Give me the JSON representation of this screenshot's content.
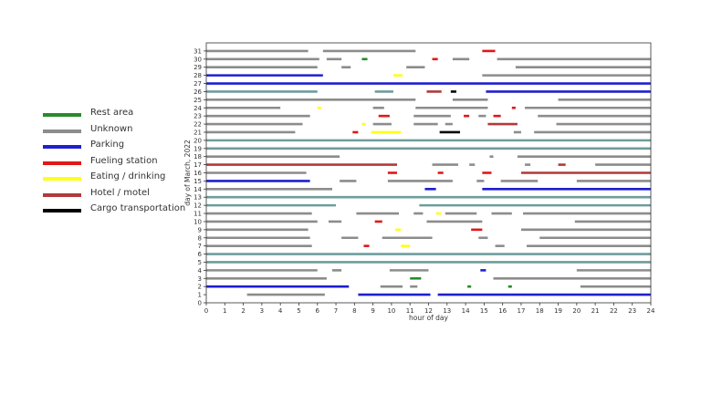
{
  "chart_data": {
    "type": "timeline",
    "xlabel": "hour of day",
    "ylabel": "day of March, 2022",
    "xlim": [
      0,
      24
    ],
    "ylim": [
      0,
      32
    ],
    "xticks": [
      "0",
      "1",
      "2",
      "3",
      "4",
      "5",
      "6",
      "7",
      "8",
      "9",
      "10",
      "11",
      "12",
      "13",
      "14",
      "15",
      "16",
      "17",
      "18",
      "19",
      "20",
      "21",
      "22",
      "23",
      "24"
    ],
    "yticks": [
      "0",
      "1",
      "2",
      "3",
      "4",
      "5",
      "6",
      "7",
      "8",
      "9",
      "10",
      "11",
      "12",
      "13",
      "14",
      "15",
      "16",
      "17",
      "18",
      "19",
      "20",
      "21",
      "22",
      "23",
      "24",
      "25",
      "26",
      "27",
      "28",
      "29",
      "30",
      "31"
    ],
    "legend_position": "left",
    "categories": [
      {
        "name": "Rest area",
        "color": "#2a8a2a"
      },
      {
        "name": "Unknown",
        "color": "#8c8c8c"
      },
      {
        "name": "Parking",
        "color": "#1f1fd0"
      },
      {
        "name": "Fueling station",
        "color": "#e01818"
      },
      {
        "name": "Eating / drinking",
        "color": "#ffff1a"
      },
      {
        "name": "Hotel / motel",
        "color": "#b03a3a"
      },
      {
        "name": "Cargo transportation",
        "color": "#000000"
      }
    ],
    "segments": [
      [
        31,
        0,
        5.5,
        1
      ],
      [
        31,
        6.3,
        11.3,
        1
      ],
      [
        31,
        14.9,
        15.6,
        3
      ],
      [
        30,
        0,
        6.1,
        1
      ],
      [
        30,
        6.5,
        7.3,
        1
      ],
      [
        30,
        8.4,
        8.7,
        0
      ],
      [
        30,
        12.2,
        12.5,
        3
      ],
      [
        30,
        13.3,
        14.2,
        1
      ],
      [
        30,
        15.7,
        24,
        1
      ],
      [
        29,
        0,
        6.0,
        1
      ],
      [
        29,
        7.3,
        7.8,
        1
      ],
      [
        29,
        10.8,
        11.8,
        1
      ],
      [
        29,
        16.7,
        24,
        1
      ],
      [
        28,
        0,
        6.3,
        2
      ],
      [
        28,
        10.1,
        10.6,
        4
      ],
      [
        28,
        14.9,
        24,
        1
      ],
      [
        27,
        0,
        24,
        2
      ],
      [
        26,
        0,
        6.0,
        8
      ],
      [
        26,
        9.1,
        10.1,
        8
      ],
      [
        26,
        11.9,
        12.7,
        5
      ],
      [
        26,
        13.2,
        13.5,
        6
      ],
      [
        26,
        15.1,
        24,
        2
      ],
      [
        25,
        0,
        11.3,
        1
      ],
      [
        25,
        13.3,
        15.2,
        1
      ],
      [
        25,
        19.0,
        24,
        1
      ],
      [
        24,
        0,
        4.0,
        1
      ],
      [
        24,
        6.0,
        6.2,
        4
      ],
      [
        24,
        9.0,
        9.6,
        1
      ],
      [
        24,
        11.3,
        15.2,
        1
      ],
      [
        24,
        16.5,
        16.7,
        3
      ],
      [
        24,
        17.2,
        24,
        1
      ],
      [
        23,
        0,
        5.6,
        1
      ],
      [
        23,
        9.3,
        9.9,
        3
      ],
      [
        23,
        11.2,
        13.2,
        1
      ],
      [
        23,
        13.9,
        14.2,
        3
      ],
      [
        23,
        14.7,
        15.1,
        1
      ],
      [
        23,
        15.5,
        15.9,
        3
      ],
      [
        23,
        17.9,
        24,
        1
      ],
      [
        22,
        0,
        5.2,
        1
      ],
      [
        22,
        8.4,
        8.6,
        4
      ],
      [
        22,
        9.0,
        10.0,
        1
      ],
      [
        22,
        11.2,
        12.5,
        1
      ],
      [
        22,
        12.9,
        13.3,
        1
      ],
      [
        22,
        15.2,
        16.8,
        5
      ],
      [
        22,
        18.9,
        24,
        1
      ],
      [
        21,
        0,
        4.8,
        1
      ],
      [
        21,
        7.9,
        8.2,
        3
      ],
      [
        21,
        8.9,
        10.5,
        4
      ],
      [
        21,
        12.6,
        13.7,
        6
      ],
      [
        21,
        16.6,
        17.0,
        1
      ],
      [
        21,
        17.7,
        24,
        1
      ],
      [
        20,
        0,
        24,
        8
      ],
      [
        19,
        0,
        24,
        8
      ],
      [
        18,
        0,
        7.2,
        1
      ],
      [
        18,
        15.3,
        15.5,
        1
      ],
      [
        18,
        16.8,
        24,
        1
      ],
      [
        17,
        0,
        10.3,
        5
      ],
      [
        17,
        12.2,
        13.6,
        1
      ],
      [
        17,
        14.2,
        14.5,
        1
      ],
      [
        17,
        17.2,
        17.5,
        1
      ],
      [
        17,
        19.0,
        19.4,
        5
      ],
      [
        17,
        21.0,
        24,
        1
      ],
      [
        16,
        0,
        5.4,
        1
      ],
      [
        16,
        9.8,
        10.3,
        3
      ],
      [
        16,
        12.5,
        12.8,
        3
      ],
      [
        16,
        14.9,
        15.4,
        3
      ],
      [
        16,
        17.0,
        24,
        5
      ],
      [
        15,
        0,
        5.6,
        2
      ],
      [
        15,
        7.2,
        8.1,
        1
      ],
      [
        15,
        9.8,
        13.3,
        1
      ],
      [
        15,
        14.6,
        15.0,
        1
      ],
      [
        15,
        15.9,
        17.9,
        1
      ],
      [
        15,
        20.0,
        24,
        1
      ],
      [
        14,
        0,
        6.8,
        1
      ],
      [
        14,
        11.8,
        12.4,
        2
      ],
      [
        14,
        14.9,
        24,
        2
      ],
      [
        13,
        0,
        24,
        8
      ],
      [
        12,
        0,
        7.0,
        8
      ],
      [
        12,
        11.5,
        24,
        8
      ],
      [
        11,
        0,
        5.7,
        1
      ],
      [
        11,
        8.1,
        10.4,
        1
      ],
      [
        11,
        11.2,
        11.7,
        1
      ],
      [
        11,
        12.4,
        12.7,
        4
      ],
      [
        11,
        12.9,
        14.6,
        1
      ],
      [
        11,
        15.4,
        16.5,
        1
      ],
      [
        11,
        17.1,
        24,
        1
      ],
      [
        10,
        0,
        6.0,
        1
      ],
      [
        10,
        6.6,
        7.3,
        1
      ],
      [
        10,
        9.1,
        9.5,
        3
      ],
      [
        10,
        11.9,
        14.9,
        1
      ],
      [
        10,
        19.9,
        24,
        1
      ],
      [
        9,
        0,
        5.5,
        1
      ],
      [
        9,
        10.2,
        10.5,
        4
      ],
      [
        9,
        14.3,
        14.9,
        3
      ],
      [
        9,
        17.0,
        24,
        1
      ],
      [
        8,
        0,
        5.6,
        1
      ],
      [
        8,
        7.3,
        8.2,
        1
      ],
      [
        8,
        9.5,
        12.2,
        1
      ],
      [
        8,
        14.7,
        15.2,
        1
      ],
      [
        8,
        18.0,
        24,
        1
      ],
      [
        7,
        0,
        5.7,
        1
      ],
      [
        7,
        8.5,
        8.8,
        3
      ],
      [
        7,
        10.5,
        11.0,
        4
      ],
      [
        7,
        15.6,
        16.1,
        1
      ],
      [
        7,
        17.3,
        24,
        1
      ],
      [
        6,
        0,
        24,
        8
      ],
      [
        5,
        0,
        24,
        8
      ],
      [
        4,
        0,
        6.0,
        1
      ],
      [
        4,
        6.8,
        7.3,
        1
      ],
      [
        4,
        9.9,
        12.0,
        1
      ],
      [
        4,
        14.8,
        15.1,
        2
      ],
      [
        4,
        20.0,
        24,
        1
      ],
      [
        3,
        0,
        6.5,
        1
      ],
      [
        3,
        11.0,
        11.6,
        0
      ],
      [
        3,
        15.5,
        24,
        1
      ],
      [
        2,
        0,
        7.7,
        2
      ],
      [
        2,
        9.4,
        10.6,
        1
      ],
      [
        2,
        11.0,
        11.4,
        1
      ],
      [
        2,
        14.1,
        14.3,
        0
      ],
      [
        2,
        16.3,
        16.5,
        0
      ],
      [
        2,
        20.2,
        24,
        1
      ],
      [
        1,
        2.2,
        6.4,
        1
      ],
      [
        1,
        8.2,
        12.1,
        2
      ],
      [
        1,
        12.5,
        24,
        2
      ]
    ]
  }
}
